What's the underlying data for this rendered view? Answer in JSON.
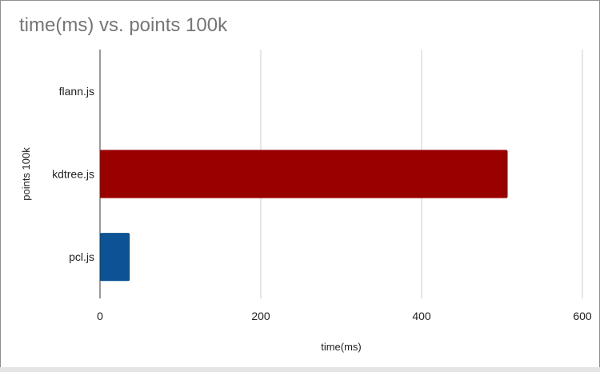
{
  "chart_data": {
    "type": "bar",
    "orientation": "horizontal",
    "title": "time(ms) vs. points 100k",
    "xlabel": "time(ms)",
    "ylabel": "points 100k",
    "categories": [
      "flann.js",
      "kdtree.js",
      "pcl.js"
    ],
    "values": [
      0,
      507,
      37
    ],
    "colors": [
      "#3366cc",
      "#990000",
      "#0b5394"
    ],
    "xlim": [
      0,
      600
    ],
    "xticks": [
      0,
      200,
      400,
      600
    ],
    "grid": true,
    "legend": "none"
  }
}
